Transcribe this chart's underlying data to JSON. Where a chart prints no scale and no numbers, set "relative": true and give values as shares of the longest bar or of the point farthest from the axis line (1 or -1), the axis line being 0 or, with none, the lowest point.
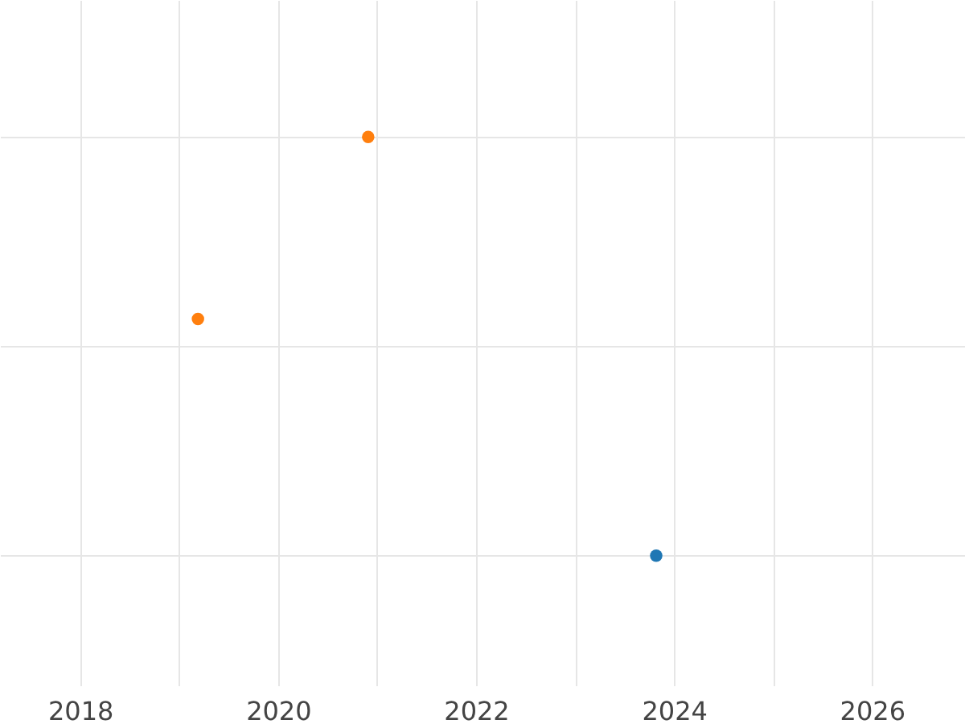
{
  "chart_data": {
    "type": "scatter",
    "relative": true,
    "xlim": [
      2017.19,
      2026.94
    ],
    "xticks": [
      2018,
      {
        "value": 2019,
        "label": null
      },
      2020,
      {
        "value": 2021,
        "label": null
      },
      2022,
      {
        "value": 2023,
        "label": null
      },
      2024,
      {
        "value": 2025,
        "label": null
      },
      2026
    ],
    "series": [
      {
        "color": "#1f77b4",
        "x": [
          2023.82
        ],
        "values": [
          0
        ]
      },
      {
        "color": "#ff7f0e",
        "x": [
          2019.19,
          2020.91
        ],
        "values": [
          0.565,
          1
        ]
      }
    ],
    "grid": true,
    "marker": "circle",
    "tick_labels": "x",
    "legend": false
  }
}
